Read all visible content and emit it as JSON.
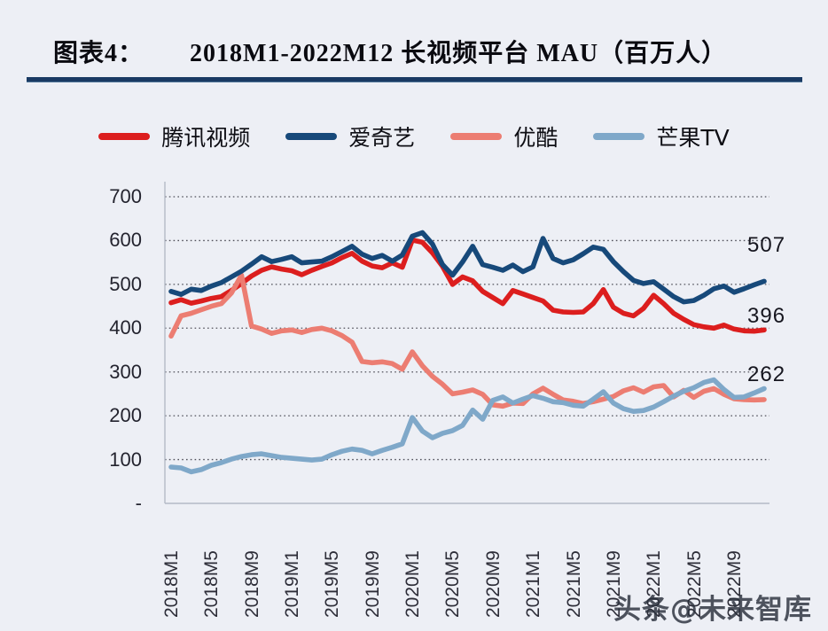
{
  "header": {
    "label": "图表4：",
    "title": "2018M1-2022M12 长视频平台 MAU（百万人）"
  },
  "watermark": "头条@未来智库",
  "chart_data": {
    "type": "line",
    "title": "2018M1-2022M12 长视频平台 MAU（百万人）",
    "x_unit": "month",
    "x_range": [
      "2018M1",
      "2022M12"
    ],
    "x_tick_every": 4,
    "x_tick_labels": [
      "2018M1",
      "2018M5",
      "2018M9",
      "2019M1",
      "2019M5",
      "2019M9",
      "2020M1",
      "2020M5",
      "2020M9",
      "2021M1",
      "2021M5",
      "2021M9",
      "2022M1",
      "2022M5",
      "2022M9"
    ],
    "y_tick_values": [
      700,
      600,
      500,
      400,
      300,
      200,
      100,
      0
    ],
    "y_tick_labels": [
      "700",
      "600",
      "500",
      "400",
      "300",
      "200",
      "100",
      "-"
    ],
    "ylim": [
      0,
      700
    ],
    "grid": "dotted-horizontal",
    "legend_position": "top",
    "colors": {
      "tencent_red": "#dc1e1e",
      "iqiyi_navy": "#17497a",
      "youku_salmon": "#ec7d72",
      "mango_lightblue": "#7fa8c9",
      "grid_dot": "#50505a",
      "axis_line": "#b4bac6",
      "title_rule_navy": "#1a3a63"
    },
    "series": [
      {
        "name": "腾讯视频",
        "color": "#dc1e1e",
        "end_label": "396",
        "values": [
          458,
          465,
          457,
          462,
          468,
          472,
          486,
          502,
          519,
          532,
          540,
          535,
          531,
          522,
          532,
          541,
          549,
          561,
          571,
          553,
          542,
          538,
          549,
          539,
          601,
          596,
          572,
          541,
          500,
          517,
          508,
          484,
          470,
          456,
          486,
          478,
          470,
          462,
          441,
          437,
          436,
          437,
          456,
          488,
          448,
          434,
          428,
          445,
          475,
          456,
          434,
          420,
          408,
          403,
          400,
          407,
          398,
          394,
          393,
          396
        ]
      },
      {
        "name": "爱奇艺",
        "color": "#17497a",
        "end_label": "507",
        "values": [
          484,
          477,
          489,
          486,
          496,
          504,
          517,
          530,
          546,
          563,
          552,
          557,
          563,
          549,
          551,
          553,
          563,
          575,
          587,
          569,
          559,
          566,
          553,
          567,
          610,
          618,
          592,
          545,
          521,
          551,
          587,
          545,
          539,
          532,
          544,
          529,
          540,
          605,
          559,
          549,
          556,
          570,
          585,
          580,
          552,
          529,
          509,
          502,
          506,
          489,
          472,
          460,
          463,
          475,
          490,
          496,
          482,
          490,
          499,
          507
        ]
      },
      {
        "name": "优酷",
        "color": "#ec7d72",
        "end_label": null,
        "values": [
          382,
          428,
          434,
          442,
          450,
          456,
          480,
          521,
          405,
          398,
          388,
          394,
          396,
          390,
          397,
          400,
          394,
          383,
          368,
          324,
          321,
          323,
          319,
          306,
          346,
          314,
          290,
          272,
          250,
          254,
          259,
          249,
          225,
          222,
          229,
          228,
          250,
          263,
          249,
          236,
          233,
          228,
          232,
          238,
          244,
          257,
          264,
          254,
          266,
          269,
          243,
          258,
          242,
          256,
          262,
          249,
          239,
          237,
          236,
          237
        ]
      },
      {
        "name": "芒果TV",
        "color": "#7fa8c9",
        "end_label": "262",
        "values": [
          83,
          81,
          72,
          77,
          87,
          93,
          101,
          107,
          111,
          113,
          109,
          105,
          103,
          101,
          99,
          101,
          111,
          119,
          124,
          121,
          113,
          121,
          128,
          136,
          196,
          165,
          150,
          160,
          166,
          178,
          213,
          192,
          235,
          243,
          229,
          238,
          246,
          240,
          232,
          230,
          224,
          222,
          238,
          255,
          229,
          216,
          210,
          212,
          220,
          232,
          245,
          256,
          264,
          276,
          282,
          260,
          242,
          243,
          252,
          262
        ]
      }
    ]
  }
}
